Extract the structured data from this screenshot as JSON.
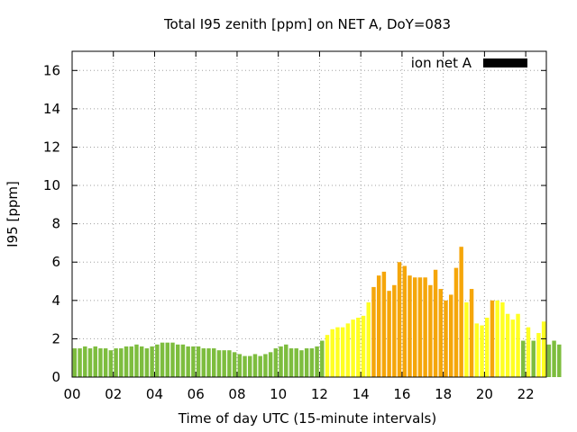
{
  "chart_data": {
    "type": "bar",
    "title": "Total I95 zenith [ppm] on NET A, DoY=083",
    "xlabel": "Time of day UTC (15-minute intervals)",
    "ylabel": "I95 [ppm]",
    "ylim": [
      0,
      17
    ],
    "xlim": [
      0,
      23
    ],
    "x_interval_hours": 0.25,
    "yticks": [
      0,
      2,
      4,
      6,
      8,
      10,
      12,
      14,
      16
    ],
    "xticks": [
      0,
      2,
      4,
      6,
      8,
      10,
      12,
      14,
      16,
      18,
      20,
      22
    ],
    "xtick_labels": [
      "00",
      "02",
      "04",
      "06",
      "08",
      "10",
      "12",
      "14",
      "16",
      "18",
      "20",
      "22"
    ],
    "grid": true,
    "legend": {
      "label": "ion net A",
      "color": "#000000",
      "position": "top-right"
    },
    "colors": {
      "low": "#7dbd3e",
      "mid": "#ffff22",
      "high": "#f5a60a"
    },
    "values": [
      1.5,
      1.5,
      1.6,
      1.5,
      1.6,
      1.5,
      1.5,
      1.4,
      1.5,
      1.5,
      1.6,
      1.6,
      1.7,
      1.6,
      1.5,
      1.6,
      1.7,
      1.8,
      1.8,
      1.8,
      1.7,
      1.7,
      1.6,
      1.6,
      1.6,
      1.5,
      1.5,
      1.5,
      1.4,
      1.4,
      1.4,
      1.3,
      1.2,
      1.1,
      1.1,
      1.2,
      1.1,
      1.2,
      1.3,
      1.5,
      1.6,
      1.7,
      1.5,
      1.5,
      1.4,
      1.5,
      1.5,
      1.6,
      1.9,
      2.2,
      2.5,
      2.6,
      2.6,
      2.8,
      3.0,
      3.1,
      3.2,
      3.9,
      4.7,
      5.3,
      5.5,
      4.5,
      4.8,
      6.0,
      5.8,
      5.3,
      5.2,
      5.2,
      5.2,
      4.8,
      5.6,
      4.6,
      4.0,
      4.3,
      5.7,
      6.8,
      3.9,
      4.6,
      2.8,
      2.7,
      3.1,
      4.0,
      4.0,
      3.9,
      3.3,
      3.0,
      3.3,
      1.9,
      2.6,
      1.9,
      2.3,
      2.9,
      1.7,
      1.9,
      1.7
    ],
    "value_levels": [
      "low",
      "low",
      "low",
      "low",
      "low",
      "low",
      "low",
      "low",
      "low",
      "low",
      "low",
      "low",
      "low",
      "low",
      "low",
      "low",
      "low",
      "low",
      "low",
      "low",
      "low",
      "low",
      "low",
      "low",
      "low",
      "low",
      "low",
      "low",
      "low",
      "low",
      "low",
      "low",
      "low",
      "low",
      "low",
      "low",
      "low",
      "low",
      "low",
      "low",
      "low",
      "low",
      "low",
      "low",
      "low",
      "low",
      "low",
      "low",
      "low",
      "mid",
      "mid",
      "mid",
      "mid",
      "mid",
      "mid",
      "mid",
      "mid",
      "mid",
      "high",
      "high",
      "high",
      "high",
      "high",
      "high",
      "high",
      "high",
      "high",
      "high",
      "high",
      "high",
      "high",
      "high",
      "high",
      "high",
      "high",
      "high",
      "mid",
      "high",
      "mid",
      "mid",
      "mid",
      "high",
      "mid",
      "mid",
      "mid",
      "mid",
      "mid",
      "low",
      "mid",
      "low",
      "mid",
      "mid",
      "low",
      "low",
      "low"
    ]
  }
}
